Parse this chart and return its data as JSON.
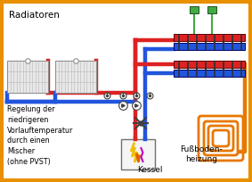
{
  "bg_color": "#ffffff",
  "border_color": "#e89000",
  "red": "#dd2222",
  "blue": "#2255dd",
  "orange": "#e87800",
  "green": "#44aa44",
  "gray": "#909090",
  "pipe_lw": 3.2,
  "title_radiatoren": "Radiatoren",
  "label_kessel": "Kessel",
  "label_fussb": "Fußboden-\nheizung",
  "label_regelung": "Regelung der\nniedrigeren\nVorlauftemperatur\ndurch einen\nMischer\n(ohne PVST)"
}
